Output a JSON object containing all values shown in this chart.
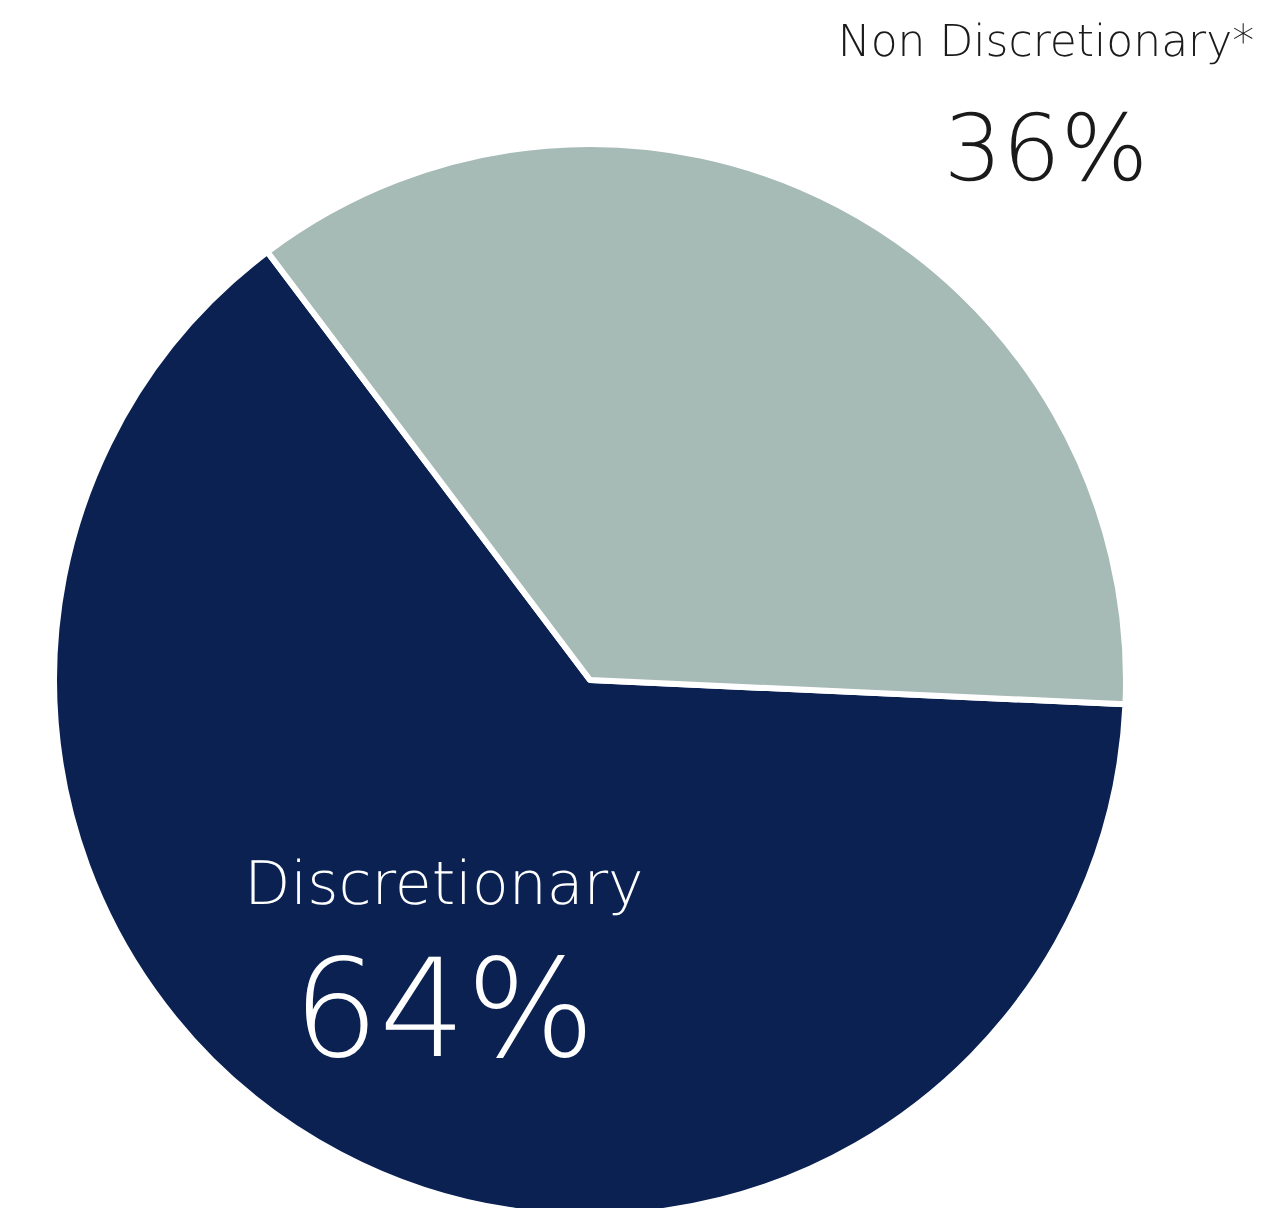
{
  "chart_data": {
    "type": "pie",
    "categories": [
      "Discretionary",
      "Non Discretionary*"
    ],
    "values": [
      64,
      36
    ],
    "colors": [
      "#0a2152",
      "#a6bab6"
    ],
    "value_labels": [
      "64%",
      "36%"
    ]
  }
}
